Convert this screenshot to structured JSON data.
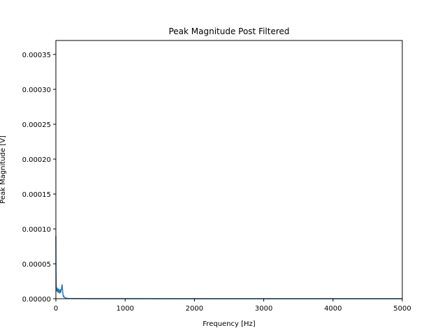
{
  "chart_data": {
    "type": "line",
    "title": "Peak Magnitude Post Filtered",
    "xlabel": "Frequency [Hz]",
    "ylabel": "Peak Magnitude [V]",
    "xlim": [
      0,
      5000
    ],
    "ylim": [
      0,
      0.00037
    ],
    "x_ticks": [
      0,
      1000,
      2000,
      3000,
      4000,
      5000
    ],
    "x_tick_labels": [
      "0",
      "1000",
      "2000",
      "3000",
      "4000",
      "5000"
    ],
    "y_ticks": [
      0,
      5e-05,
      0.0001,
      0.00015,
      0.0002,
      0.00025,
      0.0003,
      0.00035
    ],
    "y_tick_labels": [
      "0.00000",
      "0.00005",
      "0.00010",
      "0.00015",
      "0.00020",
      "0.00025",
      "0.00030",
      "0.00035"
    ],
    "grid": false,
    "series": [
      {
        "color": "#1f77b4",
        "x": [
          0,
          2,
          5,
          8,
          10,
          15,
          20,
          25,
          30,
          35,
          40,
          45,
          50,
          55,
          60,
          65,
          70,
          75,
          80,
          85,
          90,
          95,
          100,
          105,
          110,
          115,
          120,
          130,
          140,
          150,
          170,
          200,
          300,
          500,
          1000,
          2000,
          3000,
          4000,
          5000
        ],
        "y": [
          9e-05,
          4e-05,
          2e-05,
          1.2e-05,
          1.4e-05,
          1.1e-05,
          1.5e-05,
          1e-05,
          1.3e-05,
          9e-06,
          1.4e-05,
          1.1e-05,
          1.2e-05,
          8e-06,
          1.1e-05,
          1.3e-05,
          9e-06,
          1.2e-05,
          1.4e-05,
          1.7e-05,
          2e-05,
          1.4e-05,
          8e-06,
          5e-06,
          3e-06,
          4e-06,
          2e-06,
          1.5e-06,
          1e-06,
          8e-07,
          5e-07,
          3e-07,
          2e-07,
          1e-07,
          1e-07,
          5e-08,
          5e-08,
          5e-08,
          5e-08
        ]
      }
    ]
  }
}
